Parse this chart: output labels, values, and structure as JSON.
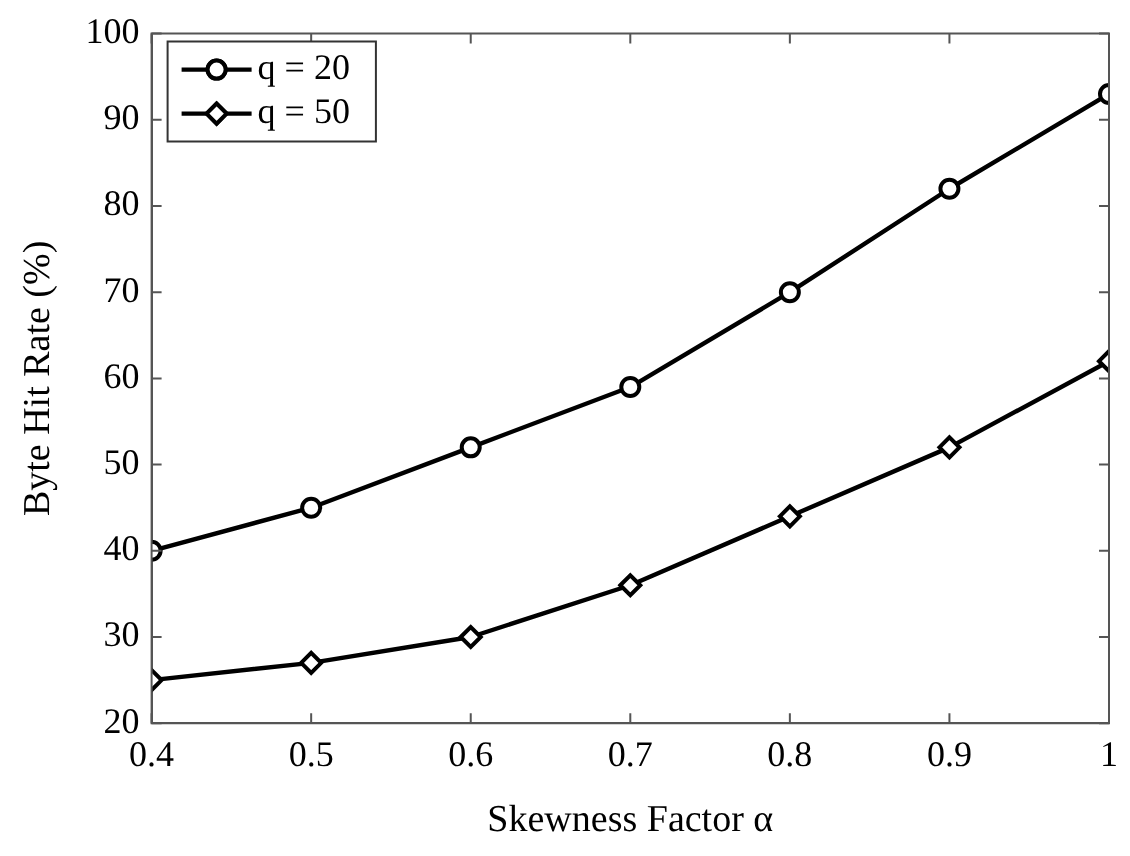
{
  "chart_data": {
    "type": "line",
    "xlabel": "Skewness Factor α",
    "ylabel": "Byte Hit Rate (%)",
    "x": [
      0.4,
      0.5,
      0.6,
      0.7,
      0.8,
      0.9,
      1
    ],
    "series": [
      {
        "name": "q = 20",
        "color": "#000000",
        "marker": "circle",
        "values": [
          40,
          45,
          52,
          59,
          70,
          82,
          93
        ]
      },
      {
        "name": "q = 50",
        "color": "#000000",
        "marker": "diamond",
        "values": [
          25,
          27,
          30,
          36,
          44,
          52,
          62
        ]
      }
    ],
    "xlim": [
      0.4,
      1
    ],
    "xticks": [
      0.4,
      0.5,
      0.6,
      0.7,
      0.8,
      0.9,
      1
    ],
    "ylim": [
      20,
      100
    ],
    "yticks": [
      20,
      30,
      40,
      50,
      60,
      70,
      80,
      90,
      100
    ],
    "grid": false,
    "legend": "top left",
    "line_style": "solid"
  }
}
